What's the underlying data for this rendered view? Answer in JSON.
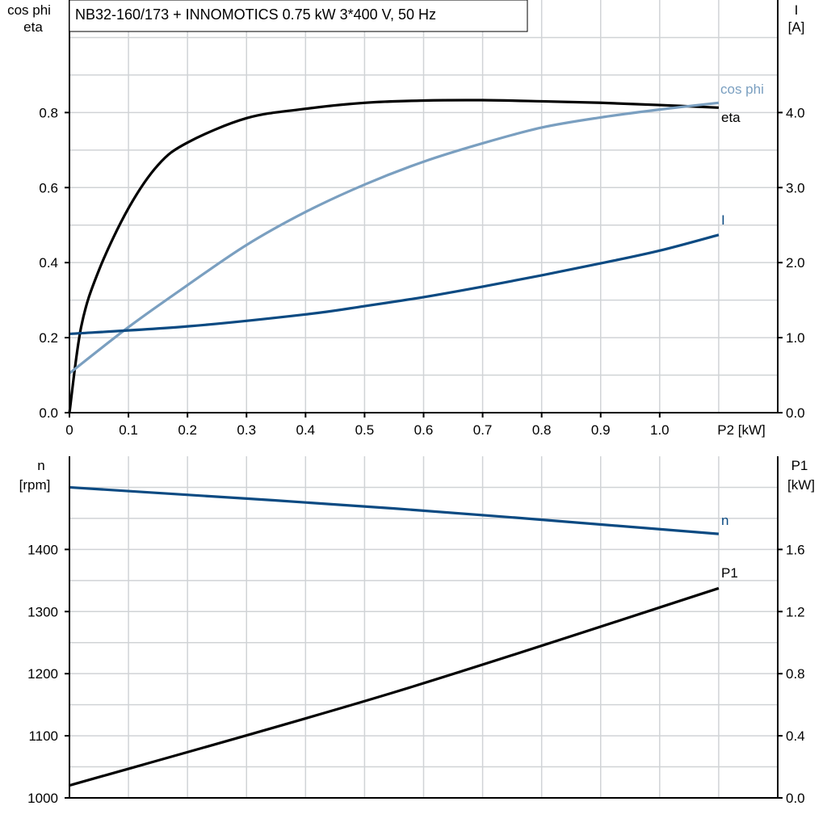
{
  "title": "NB32-160/173 + INNOMOTICS   0.75 kW   3*400 V, 50 Hz",
  "colors": {
    "eta": "#000000",
    "cos_phi": "#7a9fc0",
    "I": "#0b4a82",
    "n": "#0b4a82",
    "P1": "#000000",
    "grid": "#d0d3d6"
  },
  "chart_data": [
    {
      "type": "line",
      "xlabel": "P2 [kW]",
      "ylabel_left": [
        "cos phi",
        "eta"
      ],
      "ylabel_right": [
        "I",
        "[A]"
      ],
      "xlim": [
        0,
        1.2
      ],
      "ylim_left": [
        0,
        1.1
      ],
      "ylim_right": [
        0,
        5.5
      ],
      "grid": true,
      "x_ticks": [
        "0",
        "0.1",
        "0.2",
        "0.3",
        "0.4",
        "0.5",
        "0.6",
        "0.7",
        "0.8",
        "0.9",
        "1.0"
      ],
      "y_left_ticks": [
        "0.0",
        "0.2",
        "0.4",
        "0.6",
        "0.8"
      ],
      "y_right_ticks": [
        "0.0",
        "1.0",
        "2.0",
        "3.0",
        "4.0"
      ],
      "series": [
        {
          "name": "eta",
          "axis": "left",
          "x": [
            0,
            0.02,
            0.05,
            0.1,
            0.15,
            0.2,
            0.3,
            0.4,
            0.5,
            0.6,
            0.7,
            0.8,
            0.9,
            1.0,
            1.1
          ],
          "y": [
            0,
            0.23,
            0.38,
            0.545,
            0.66,
            0.72,
            0.785,
            0.81,
            0.826,
            0.832,
            0.833,
            0.83,
            0.826,
            0.82,
            0.813
          ]
        },
        {
          "name": "cos phi",
          "axis": "left",
          "x": [
            0,
            0.1,
            0.2,
            0.3,
            0.4,
            0.5,
            0.6,
            0.7,
            0.8,
            0.9,
            1.0,
            1.1
          ],
          "y": [
            0.105,
            0.228,
            0.34,
            0.447,
            0.535,
            0.608,
            0.669,
            0.718,
            0.76,
            0.787,
            0.808,
            0.826
          ]
        },
        {
          "name": "I",
          "axis": "right",
          "x": [
            0,
            0.2,
            0.4,
            0.5,
            0.6,
            0.7,
            0.8,
            0.9,
            1.0,
            1.1
          ],
          "y": [
            1.05,
            1.15,
            1.31,
            1.42,
            1.54,
            1.68,
            1.83,
            1.99,
            2.16,
            2.37
          ]
        }
      ]
    },
    {
      "type": "line",
      "ylabel_left": [
        "n",
        "[rpm]"
      ],
      "ylabel_right": [
        "P1",
        "[kW]"
      ],
      "xlim": [
        0,
        1.2
      ],
      "ylim_left": [
        1000,
        1550
      ],
      "ylim_right": [
        0,
        2.2
      ],
      "grid": true,
      "y_left_ticks": [
        "1000",
        "1100",
        "1200",
        "1300",
        "1400"
      ],
      "y_right_ticks": [
        "0.0",
        "0.4",
        "0.8",
        "1.2",
        "1.6"
      ],
      "series": [
        {
          "name": "n",
          "axis": "left",
          "x": [
            0,
            0.55,
            1.1
          ],
          "y": [
            1500,
            1466,
            1425
          ]
        },
        {
          "name": "P1",
          "axis": "right",
          "x": [
            0,
            0.55,
            1.1
          ],
          "y": [
            0.08,
            0.68,
            1.35
          ]
        }
      ]
    }
  ]
}
